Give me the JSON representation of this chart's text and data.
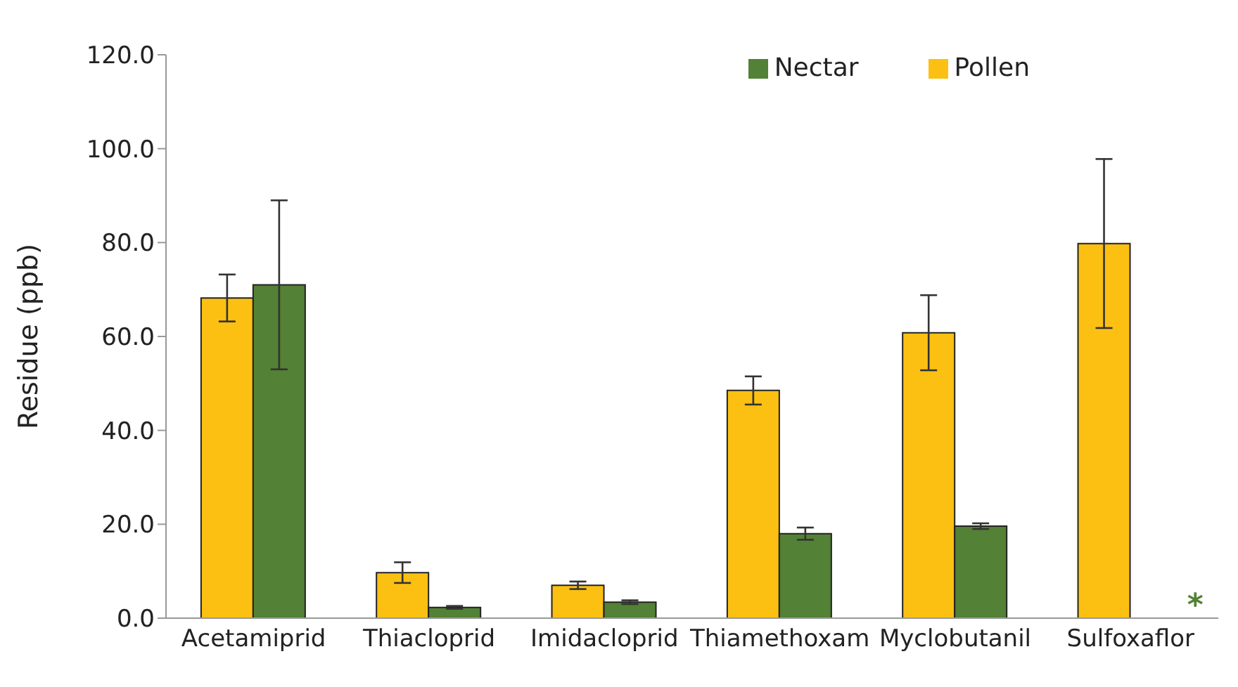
{
  "chart_data": {
    "type": "bar",
    "ylabel": "Residue (ppb)",
    "categories": [
      "Acetamiprid",
      "Thiacloprid",
      "Imidacloprid",
      "Thiamethoxam",
      "Myclobutanil",
      "Sulfoxaflor"
    ],
    "series": [
      {
        "name": "Pollen",
        "color": "#fbc012",
        "values": [
          68.2,
          9.7,
          7.0,
          48.5,
          60.8,
          79.8
        ],
        "errors": [
          5,
          2.2,
          0.8,
          3,
          8,
          18
        ]
      },
      {
        "name": "Nectar",
        "color": "#538135",
        "values": [
          71,
          2.3,
          3.4,
          18,
          19.6,
          null
        ],
        "errors": [
          18,
          0.3,
          0.4,
          1.3,
          0.6,
          null
        ]
      }
    ],
    "ylim": [
      0,
      120
    ],
    "yticks": [
      {
        "value": 0,
        "label": "0.0"
      },
      {
        "value": 20,
        "label": "20.0"
      },
      {
        "value": 40,
        "label": "40.0"
      },
      {
        "value": 60,
        "label": "60.0"
      },
      {
        "value": 80,
        "label": "80.0"
      },
      {
        "value": 100,
        "label": "100.0"
      },
      {
        "value": 120,
        "label": "120.0"
      }
    ],
    "annotations": [
      {
        "text": "*",
        "x": "Sulfoxaflor",
        "y": 0
      }
    ],
    "grid": false,
    "legend": "top right"
  }
}
